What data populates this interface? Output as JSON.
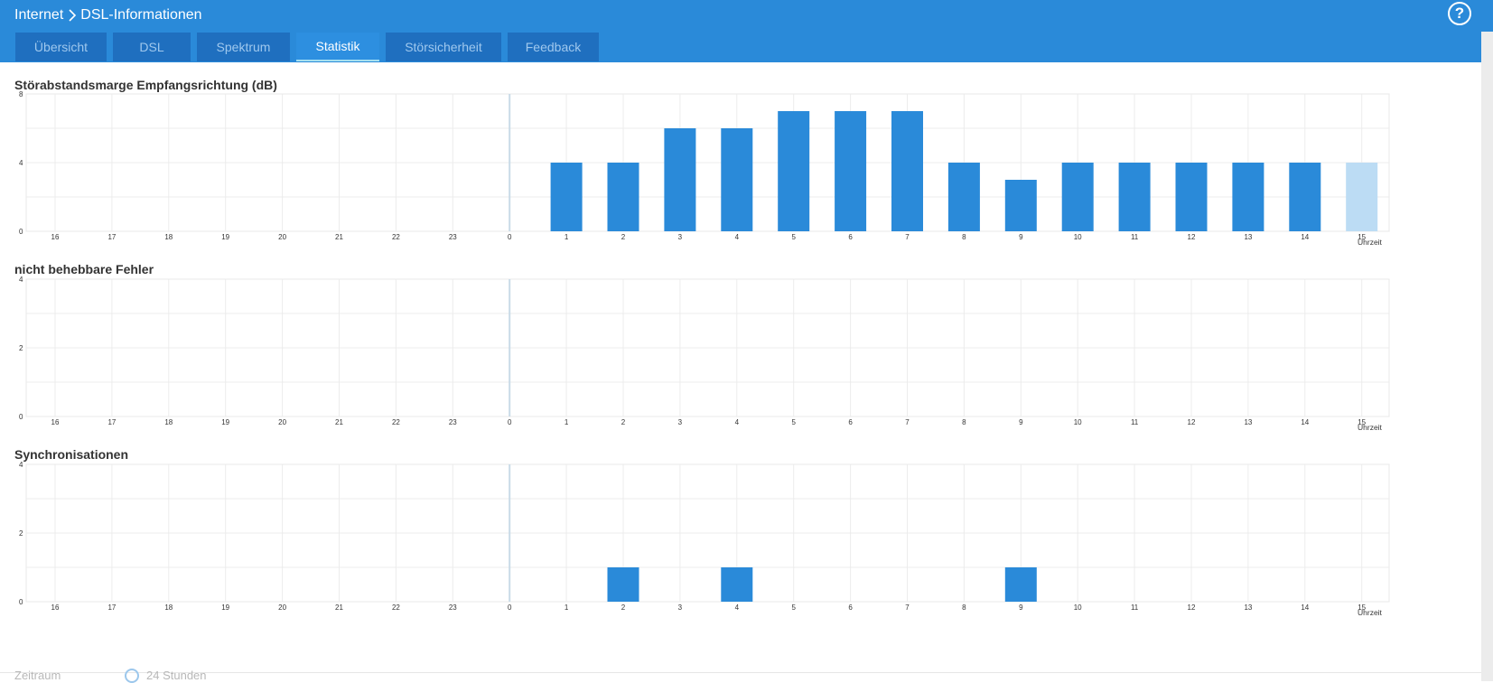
{
  "header": {
    "crumb_root": "Internet",
    "crumb_page": "DSL-Informationen",
    "help_label": "?"
  },
  "tabs": [
    {
      "label": "Übersicht",
      "active": false
    },
    {
      "label": "DSL",
      "active": false
    },
    {
      "label": "Spektrum",
      "active": false
    },
    {
      "label": "Statistik",
      "active": true
    },
    {
      "label": "Störsicherheit",
      "active": false
    },
    {
      "label": "Feedback",
      "active": false
    }
  ],
  "colors": {
    "header_bg": "#2a8ad9",
    "tab_bg": "#1f6fbf",
    "tab_active_bg": "#2d8fe0",
    "bar": "#2a8ad9",
    "bar_current": "#bcdcf4"
  },
  "chart_data": [
    {
      "type": "bar",
      "title": "Störabstandsmarge Empfangsrichtung (dB)",
      "xlabel": "Uhrzeit",
      "categories": [
        "16",
        "17",
        "18",
        "19",
        "20",
        "21",
        "22",
        "23",
        "0",
        "1",
        "2",
        "3",
        "4",
        "5",
        "6",
        "7",
        "8",
        "9",
        "10",
        "11",
        "12",
        "13",
        "14",
        "15"
      ],
      "values": [
        null,
        null,
        null,
        null,
        null,
        null,
        null,
        null,
        null,
        4,
        4,
        6,
        6,
        7,
        7,
        7,
        4,
        3,
        4,
        4,
        4,
        4,
        4,
        4
      ],
      "yticks": [
        0,
        4,
        8
      ],
      "ylim": [
        0,
        8
      ],
      "current_index": 23
    },
    {
      "type": "bar",
      "title": "nicht behebbare Fehler",
      "xlabel": "Uhrzeit",
      "categories": [
        "16",
        "17",
        "18",
        "19",
        "20",
        "21",
        "22",
        "23",
        "0",
        "1",
        "2",
        "3",
        "4",
        "5",
        "6",
        "7",
        "8",
        "9",
        "10",
        "11",
        "12",
        "13",
        "14",
        "15"
      ],
      "values": [
        0,
        0,
        0,
        0,
        0,
        0,
        0,
        0,
        0,
        0,
        0,
        0,
        0,
        0,
        0,
        0,
        0,
        0,
        0,
        0,
        0,
        0,
        0,
        0
      ],
      "yticks": [
        0,
        2,
        4
      ],
      "ylim": [
        0,
        4
      ]
    },
    {
      "type": "bar",
      "title": "Synchronisationen",
      "xlabel": "Uhrzeit",
      "categories": [
        "16",
        "17",
        "18",
        "19",
        "20",
        "21",
        "22",
        "23",
        "0",
        "1",
        "2",
        "3",
        "4",
        "5",
        "6",
        "7",
        "8",
        "9",
        "10",
        "11",
        "12",
        "13",
        "14",
        "15"
      ],
      "values": [
        0,
        0,
        0,
        0,
        0,
        0,
        0,
        0,
        0,
        0,
        1,
        0,
        1,
        0,
        0,
        0,
        0,
        1,
        0,
        0,
        0,
        0,
        0,
        0
      ],
      "yticks": [
        0,
        2,
        4
      ],
      "ylim": [
        0,
        4
      ]
    }
  ],
  "footer": {
    "period_label": "Zeitraum",
    "period_option": "24 Stunden"
  }
}
